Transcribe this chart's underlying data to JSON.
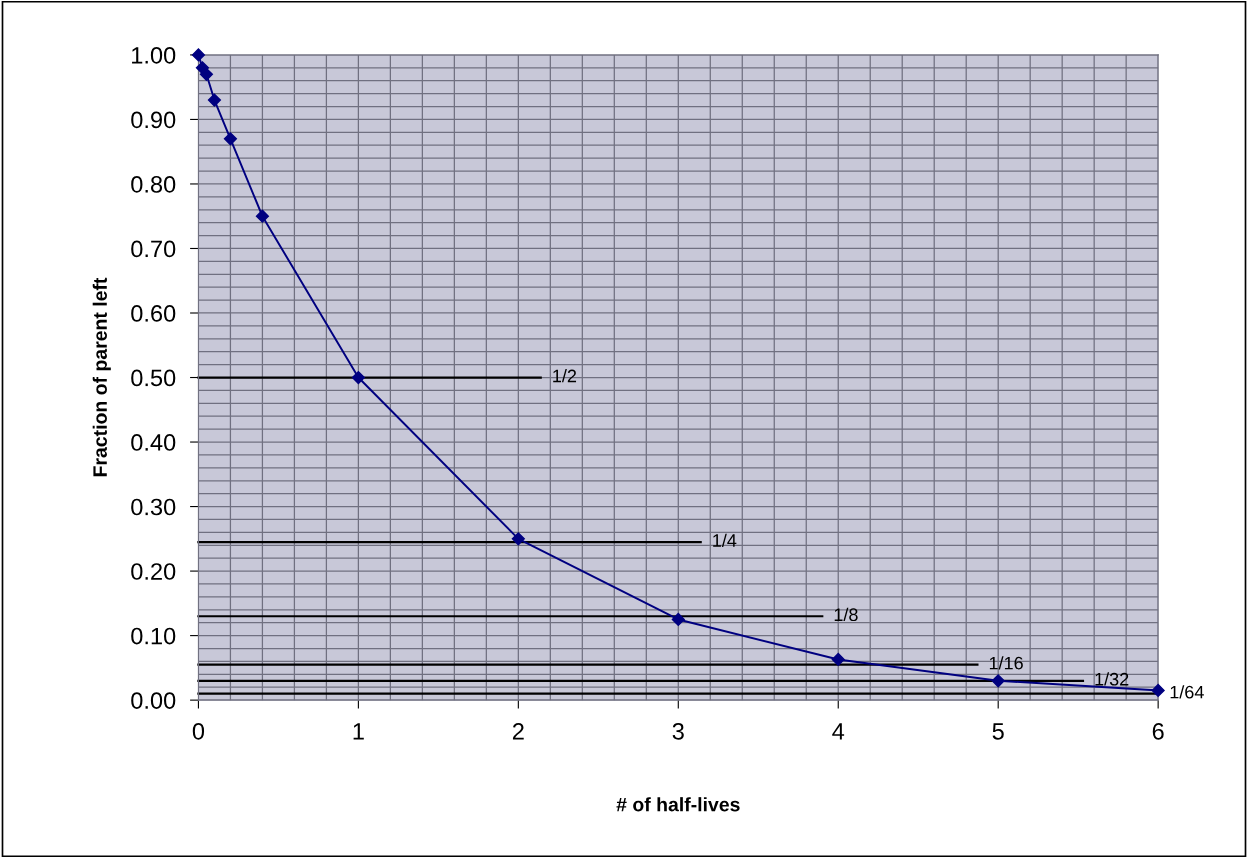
{
  "chart_data": {
    "type": "line",
    "xlabel": "# of half-lives",
    "ylabel": "Fraction of parent left",
    "series": [
      {
        "color": "#000080",
        "marker": "diamond",
        "x": [
          0,
          0.025,
          0.05,
          0.1,
          0.2,
          0.4,
          1,
          2,
          3,
          4,
          5,
          6
        ],
        "values": [
          1.0,
          0.98,
          0.97,
          0.93,
          0.87,
          0.75,
          0.5,
          0.25,
          0.125,
          0.063,
          0.03,
          0.015
        ]
      },
      {
        "color": "#000000",
        "marker": "none",
        "x": [
          0,
          2.14
        ],
        "values": [
          0.5,
          0.5
        ]
      },
      {
        "color": "#000000",
        "marker": "none",
        "x": [
          0,
          3.14
        ],
        "values": [
          0.245,
          0.245
        ]
      },
      {
        "color": "#000000",
        "marker": "none",
        "x": [
          0,
          3.9
        ],
        "values": [
          0.13,
          0.13
        ]
      },
      {
        "color": "#000000",
        "marker": "none",
        "x": [
          0,
          4.87
        ],
        "values": [
          0.055,
          0.055
        ]
      },
      {
        "color": "#000000",
        "marker": "none",
        "x": [
          0,
          5.53
        ],
        "values": [
          0.03,
          0.03
        ]
      },
      {
        "color": "#000000",
        "marker": "none",
        "x": [
          0,
          6
        ],
        "values": [
          0.01,
          0.01
        ]
      }
    ],
    "annotations": [
      {
        "text": "1/2",
        "x": 2.14,
        "y": 0.5
      },
      {
        "text": "1/4",
        "x": 3.14,
        "y": 0.245
      },
      {
        "text": "1/8",
        "x": 3.9,
        "y": 0.13
      },
      {
        "text": "1/16",
        "x": 4.87,
        "y": 0.055
      },
      {
        "text": "1/32",
        "x": 5.53,
        "y": 0.03
      },
      {
        "text": "1/64",
        "x": 6,
        "y": 0.01
      }
    ],
    "xlim": [
      0,
      6
    ],
    "xticks": [
      0,
      1,
      2,
      3,
      4,
      5,
      6
    ],
    "ylim": [
      0,
      1
    ],
    "yticks": [
      {
        "value": 0,
        "label": "0.00"
      },
      {
        "value": 0.1,
        "label": "0.10"
      },
      {
        "value": 0.2,
        "label": "0.20"
      },
      {
        "value": 0.3,
        "label": "0.30"
      },
      {
        "value": 0.4,
        "label": "0.40"
      },
      {
        "value": 0.5,
        "label": "0.50"
      },
      {
        "value": 0.6,
        "label": "0.60"
      },
      {
        "value": 0.7,
        "label": "0.70"
      },
      {
        "value": 0.8,
        "label": "0.80"
      },
      {
        "value": 0.9,
        "label": "0.90"
      },
      {
        "value": 1.0,
        "label": "1.00"
      }
    ],
    "grid": true
  }
}
